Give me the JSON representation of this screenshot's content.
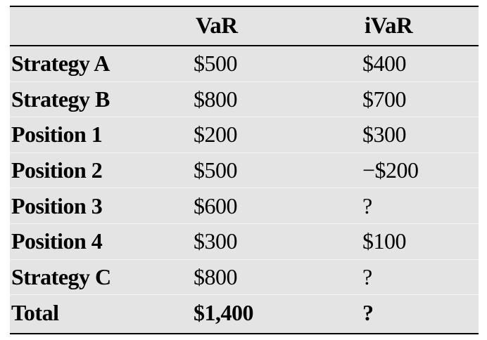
{
  "table": {
    "headers": [
      "",
      "VaR",
      "iVaR"
    ],
    "rows": [
      {
        "name": "Strategy A",
        "var": "$500",
        "ivar": "$400"
      },
      {
        "name": "Strategy B",
        "var": "$800",
        "ivar": "$700"
      },
      {
        "name": "Position 1",
        "var": "$200",
        "ivar": "$300"
      },
      {
        "name": "Position 2",
        "var": "$500",
        "ivar": "−$200"
      },
      {
        "name": "Position 3",
        "var": "$600",
        "ivar": "?"
      },
      {
        "name": "Position 4",
        "var": "$300",
        "ivar": "$100"
      },
      {
        "name": "Strategy C",
        "var": "$800",
        "ivar": "?"
      },
      {
        "name": "Total",
        "var": "$1,400",
        "ivar": "?"
      }
    ]
  },
  "colors": {
    "background": "#e4e4e4",
    "rule": "#000000"
  }
}
